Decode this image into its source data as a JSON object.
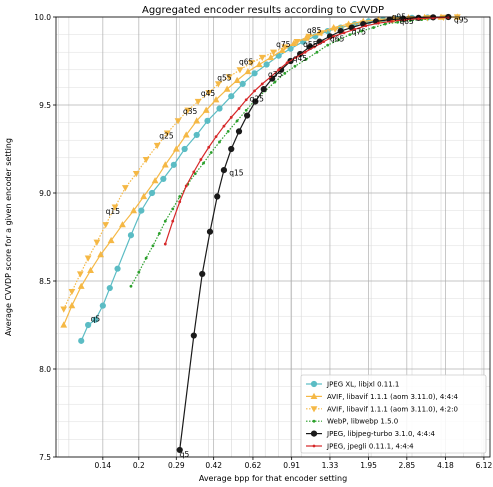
{
  "chart_data": {
    "type": "line",
    "title": "Aggregated encoder results according to CVVDP",
    "xlabel": "Average bpp for that encoder setting",
    "ylabel": "Average CVVDP score for a given encoder setting",
    "xscale": "log",
    "xlim": [
      0.088,
      6.5
    ],
    "ylim": [
      7.5,
      10.0
    ],
    "x_tick_labels": [
      "0.14",
      "0.2",
      "0.29",
      "0.42",
      "0.62",
      "0.91",
      "1.33",
      "1.95",
      "2.85",
      "4.18",
      "6.12"
    ],
    "y_tick_labels": [
      "7.5",
      "8.0",
      "8.5",
      "9.0",
      "9.5",
      "10.0"
    ],
    "grid": true,
    "legend_position": "lower right",
    "series": [
      {
        "name": "JPEG XL, libjxl 0.11.1",
        "color": "#5bbcc4",
        "marker": "circle",
        "linestyle": "solid",
        "points": [
          [
            0.113,
            8.16
          ],
          [
            0.121,
            8.25
          ],
          [
            0.13,
            8.28
          ],
          [
            0.14,
            8.36
          ],
          [
            0.15,
            8.46
          ],
          [
            0.162,
            8.57
          ],
          [
            0.185,
            8.76
          ],
          [
            0.205,
            8.9
          ],
          [
            0.228,
            9.0
          ],
          [
            0.255,
            9.08
          ],
          [
            0.283,
            9.16
          ],
          [
            0.315,
            9.25
          ],
          [
            0.355,
            9.33
          ],
          [
            0.395,
            9.41
          ],
          [
            0.445,
            9.48
          ],
          [
            0.5,
            9.55
          ],
          [
            0.56,
            9.62
          ],
          [
            0.63,
            9.68
          ],
          [
            0.71,
            9.73
          ],
          [
            0.8,
            9.78
          ],
          [
            0.9,
            9.82
          ],
          [
            1.02,
            9.86
          ],
          [
            1.15,
            9.89
          ],
          [
            1.3,
            9.92
          ],
          [
            1.48,
            9.94
          ],
          [
            1.7,
            9.96
          ],
          [
            1.95,
            9.975
          ],
          [
            2.25,
            9.985
          ],
          [
            2.6,
            9.99
          ],
          [
            3.0,
            9.995
          ],
          [
            3.5,
            9.997
          ]
        ]
      },
      {
        "name": "AVIF, libavif 1.1.1 (aom 3.11.0), 4:4:4",
        "color": "#f5b845",
        "marker": "triangle-up",
        "linestyle": "solid",
        "points": [
          [
            0.095,
            8.25
          ],
          [
            0.103,
            8.36
          ],
          [
            0.113,
            8.47
          ],
          [
            0.124,
            8.56
          ],
          [
            0.137,
            8.65
          ],
          [
            0.152,
            8.73
          ],
          [
            0.17,
            8.82
          ],
          [
            0.19,
            8.9
          ],
          [
            0.21,
            8.98
          ],
          [
            0.235,
            9.07
          ],
          [
            0.26,
            9.16
          ],
          [
            0.29,
            9.25
          ],
          [
            0.32,
            9.33
          ],
          [
            0.355,
            9.41
          ],
          [
            0.39,
            9.47
          ],
          [
            0.43,
            9.53
          ],
          [
            0.48,
            9.59
          ],
          [
            0.53,
            9.64
          ],
          [
            0.59,
            9.69
          ],
          [
            0.66,
            9.73
          ],
          [
            0.74,
            9.77
          ],
          [
            0.83,
            9.81
          ],
          [
            0.93,
            9.85
          ],
          [
            1.05,
            9.88
          ],
          [
            1.2,
            9.91
          ],
          [
            1.38,
            9.94
          ],
          [
            1.6,
            9.96
          ],
          [
            1.85,
            9.975
          ],
          [
            2.15,
            9.985
          ],
          [
            2.5,
            9.992
          ],
          [
            2.9,
            9.996
          ],
          [
            3.4,
            9.998
          ],
          [
            4.0,
            9.999
          ],
          [
            4.7,
            10.0
          ]
        ]
      },
      {
        "name": "AVIF, libavif 1.1.1 (aom 3.11.0), 4:2:0",
        "color": "#f5b845",
        "marker": "triangle-down",
        "linestyle": "dotted",
        "points": [
          [
            0.095,
            8.34
          ],
          [
            0.103,
            8.44
          ],
          [
            0.112,
            8.54
          ],
          [
            0.121,
            8.63
          ],
          [
            0.132,
            8.72
          ],
          [
            0.144,
            8.82
          ],
          [
            0.158,
            8.92
          ],
          [
            0.175,
            9.03
          ],
          [
            0.195,
            9.11
          ],
          [
            0.215,
            9.19
          ],
          [
            0.24,
            9.27
          ],
          [
            0.265,
            9.34
          ],
          [
            0.295,
            9.41
          ],
          [
            0.325,
            9.47
          ],
          [
            0.36,
            9.52
          ],
          [
            0.4,
            9.57
          ],
          [
            0.44,
            9.62
          ],
          [
            0.49,
            9.66
          ],
          [
            0.545,
            9.7
          ],
          [
            0.61,
            9.74
          ],
          [
            0.68,
            9.77
          ],
          [
            0.76,
            9.8
          ],
          [
            0.85,
            9.83
          ],
          [
            0.96,
            9.86
          ],
          [
            1.08,
            9.89
          ],
          [
            1.22,
            9.91
          ],
          [
            1.4,
            9.93
          ],
          [
            1.6,
            9.95
          ],
          [
            1.85,
            9.965
          ],
          [
            2.15,
            9.975
          ],
          [
            2.5,
            9.985
          ],
          [
            2.95,
            9.99
          ],
          [
            3.5,
            9.995
          ],
          [
            4.1,
            9.998
          ],
          [
            4.7,
            10.0
          ]
        ]
      },
      {
        "name": "WebP, libwebp 1.5.0",
        "color": "#2ca02c",
        "marker": "dot",
        "linestyle": "dotted",
        "points": [
          [
            0.185,
            8.47
          ],
          [
            0.2,
            8.55
          ],
          [
            0.215,
            8.63
          ],
          [
            0.23,
            8.7
          ],
          [
            0.245,
            8.77
          ],
          [
            0.26,
            8.84
          ],
          [
            0.28,
            8.91
          ],
          [
            0.3,
            8.98
          ],
          [
            0.325,
            9.05
          ],
          [
            0.35,
            9.11
          ],
          [
            0.38,
            9.17
          ],
          [
            0.41,
            9.23
          ],
          [
            0.445,
            9.29
          ],
          [
            0.485,
            9.35
          ],
          [
            0.53,
            9.41
          ],
          [
            0.58,
            9.47
          ],
          [
            0.635,
            9.53
          ],
          [
            0.7,
            9.58
          ],
          [
            0.77,
            9.63
          ],
          [
            0.85,
            9.68
          ],
          [
            0.94,
            9.72
          ],
          [
            1.05,
            9.76
          ],
          [
            1.17,
            9.8
          ],
          [
            1.3,
            9.84
          ],
          [
            1.45,
            9.87
          ],
          [
            1.62,
            9.9
          ],
          [
            1.82,
            9.92
          ],
          [
            2.05,
            9.94
          ],
          [
            2.3,
            9.96
          ],
          [
            2.6,
            9.97
          ],
          [
            2.95,
            9.98
          ],
          [
            3.3,
            9.985
          ],
          [
            3.7,
            9.99
          ]
        ]
      },
      {
        "name": "JPEG, libjpeg-turbo 3.1.0, 4:4:4",
        "color": "#1a1a1a",
        "marker": "circle",
        "linestyle": "solid",
        "points": [
          [
            0.3,
            7.54
          ],
          [
            0.345,
            8.19
          ],
          [
            0.375,
            8.54
          ],
          [
            0.405,
            8.78
          ],
          [
            0.435,
            8.98
          ],
          [
            0.465,
            9.13
          ],
          [
            0.5,
            9.25
          ],
          [
            0.54,
            9.35
          ],
          [
            0.585,
            9.44
          ],
          [
            0.635,
            9.52
          ],
          [
            0.69,
            9.59
          ],
          [
            0.75,
            9.65
          ],
          [
            0.82,
            9.7
          ],
          [
            0.9,
            9.75
          ],
          [
            0.99,
            9.79
          ],
          [
            1.09,
            9.83
          ],
          [
            1.2,
            9.86
          ],
          [
            1.33,
            9.89
          ],
          [
            1.48,
            9.92
          ],
          [
            1.65,
            9.94
          ],
          [
            1.85,
            9.96
          ],
          [
            2.1,
            9.975
          ],
          [
            2.4,
            9.985
          ],
          [
            2.75,
            9.99
          ],
          [
            3.2,
            9.995
          ],
          [
            3.7,
            9.998
          ],
          [
            4.3,
            10.0
          ]
        ]
      },
      {
        "name": "JPEG, jpegli 0.11.1, 4:4:4",
        "color": "#d62728",
        "marker": "dot",
        "linestyle": "solid",
        "points": [
          [
            0.26,
            8.71
          ],
          [
            0.28,
            8.84
          ],
          [
            0.3,
            8.95
          ],
          [
            0.32,
            9.04
          ],
          [
            0.345,
            9.12
          ],
          [
            0.37,
            9.19
          ],
          [
            0.4,
            9.26
          ],
          [
            0.43,
            9.32
          ],
          [
            0.465,
            9.38
          ],
          [
            0.5,
            9.43
          ],
          [
            0.54,
            9.48
          ],
          [
            0.58,
            9.53
          ],
          [
            0.63,
            9.58
          ],
          [
            0.68,
            9.62
          ],
          [
            0.74,
            9.66
          ],
          [
            0.8,
            9.7
          ],
          [
            0.87,
            9.74
          ],
          [
            0.95,
            9.77
          ],
          [
            1.04,
            9.8
          ],
          [
            1.14,
            9.83
          ],
          [
            1.25,
            9.86
          ],
          [
            1.38,
            9.89
          ],
          [
            1.53,
            9.91
          ],
          [
            1.7,
            9.93
          ],
          [
            1.9,
            9.95
          ],
          [
            2.15,
            9.965
          ],
          [
            2.45,
            9.975
          ],
          [
            2.8,
            9.985
          ],
          [
            3.2,
            9.99
          ],
          [
            3.7,
            9.995
          ],
          [
            4.3,
            9.998
          ]
        ]
      }
    ],
    "annotations": [
      {
        "text": "q5",
        "x": 0.124,
        "y": 8.27
      },
      {
        "text": "q15",
        "x": 0.144,
        "y": 8.88
      },
      {
        "text": "q25",
        "x": 0.245,
        "y": 9.31
      },
      {
        "text": "q35",
        "x": 0.31,
        "y": 9.45
      },
      {
        "text": "q45",
        "x": 0.37,
        "y": 9.55
      },
      {
        "text": "q55",
        "x": 0.435,
        "y": 9.64
      },
      {
        "text": "q65",
        "x": 0.54,
        "y": 9.73
      },
      {
        "text": "q75",
        "x": 0.78,
        "y": 9.83
      },
      {
        "text": "q85",
        "x": 1.06,
        "y": 9.91
      },
      {
        "text": "q95",
        "x": 2.45,
        "y": 9.985
      },
      {
        "text": "q55",
        "x": 1.02,
        "y": 9.83
      },
      {
        "text": "q65",
        "x": 1.33,
        "y": 9.86
      },
      {
        "text": "q75",
        "x": 1.65,
        "y": 9.9
      },
      {
        "text": "q85",
        "x": 2.65,
        "y": 9.96
      },
      {
        "text": "q95",
        "x": 4.55,
        "y": 9.97
      },
      {
        "text": "q45",
        "x": 0.92,
        "y": 9.75
      },
      {
        "text": "q35",
        "x": 0.72,
        "y": 9.66
      },
      {
        "text": "q25",
        "x": 0.6,
        "y": 9.52
      },
      {
        "text": "q15",
        "x": 0.49,
        "y": 9.1
      },
      {
        "text": "q5",
        "x": 0.3,
        "y": 7.5
      }
    ]
  }
}
